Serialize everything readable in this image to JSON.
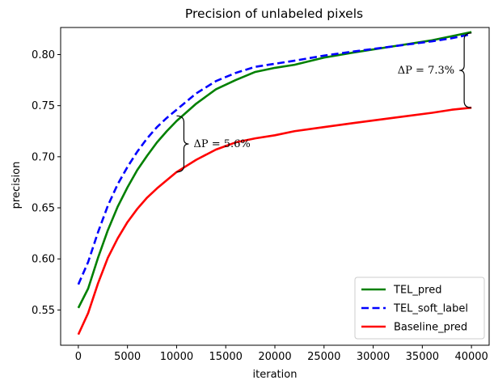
{
  "chart_data": {
    "type": "line",
    "title": "Precision of unlabeled pixels",
    "xlabel": "iteration",
    "ylabel": "precision",
    "xlim": [
      -1800,
      41800
    ],
    "ylim": [
      0.5155,
      0.8265
    ],
    "xticks": [
      0,
      5000,
      10000,
      15000,
      20000,
      25000,
      30000,
      35000,
      40000
    ],
    "yticks": [
      0.55,
      0.6,
      0.65,
      0.7,
      0.75,
      0.8
    ],
    "ytick_labels": [
      "0.55",
      "0.60",
      "0.65",
      "0.70",
      "0.75",
      "0.80"
    ],
    "legend_position": "lower-right",
    "series": [
      {
        "name": "TEL_pred",
        "color": "#008000",
        "style": "solid",
        "x": [
          0,
          1000,
          2000,
          3000,
          4000,
          5000,
          6000,
          7000,
          8000,
          9000,
          10000,
          12000,
          14000,
          16000,
          18000,
          20000,
          22000,
          25000,
          28000,
          32000,
          36000,
          38000,
          40000
        ],
        "y": [
          0.552,
          0.571,
          0.601,
          0.628,
          0.651,
          0.67,
          0.687,
          0.701,
          0.714,
          0.725,
          0.735,
          0.752,
          0.766,
          0.775,
          0.783,
          0.787,
          0.79,
          0.797,
          0.802,
          0.808,
          0.814,
          0.818,
          0.822
        ]
      },
      {
        "name": "TEL_soft_label",
        "color": "#0000ff",
        "style": "dashed",
        "x": [
          0,
          1000,
          2000,
          3000,
          4000,
          5000,
          6000,
          7000,
          8000,
          9000,
          10000,
          12000,
          14000,
          16000,
          18000,
          20000,
          22000,
          25000,
          28000,
          32000,
          36000,
          38000,
          40000
        ],
        "y": [
          0.575,
          0.597,
          0.626,
          0.652,
          0.673,
          0.69,
          0.705,
          0.718,
          0.729,
          0.738,
          0.746,
          0.762,
          0.774,
          0.782,
          0.788,
          0.791,
          0.794,
          0.799,
          0.803,
          0.808,
          0.813,
          0.816,
          0.82
        ]
      },
      {
        "name": "Baseline_pred",
        "color": "#ff0000",
        "style": "solid",
        "x": [
          0,
          1000,
          2000,
          3000,
          4000,
          5000,
          6000,
          7000,
          8000,
          9000,
          10000,
          12000,
          14000,
          16000,
          18000,
          20000,
          22000,
          25000,
          28000,
          32000,
          36000,
          38000,
          40000
        ],
        "y": [
          0.526,
          0.547,
          0.576,
          0.601,
          0.62,
          0.636,
          0.649,
          0.66,
          0.669,
          0.677,
          0.685,
          0.697,
          0.707,
          0.714,
          0.718,
          0.721,
          0.725,
          0.729,
          0.733,
          0.738,
          0.743,
          0.746,
          0.748
        ]
      }
    ],
    "annotations": [
      {
        "text": "ΔP = 5.6%",
        "x": 10000,
        "y_low": 0.685,
        "y_high": 0.74,
        "side": "right"
      },
      {
        "text": "ΔP = 7.3%",
        "x": 40000,
        "y_low": 0.748,
        "y_high": 0.821,
        "side": "left"
      }
    ]
  }
}
